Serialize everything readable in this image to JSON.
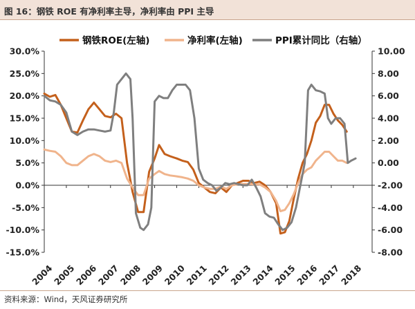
{
  "header": {
    "title": "图 16：钢铁 ROE 有净利率主导，净利率由 PPI 主导"
  },
  "footer": {
    "source": "资料来源：Wind，天风证券研究所"
  },
  "chart_data": {
    "type": "line",
    "x_ticks": [
      "2004",
      "2005",
      "2006",
      "2007",
      "2008",
      "2009",
      "2010",
      "2011",
      "2012",
      "2013",
      "2014",
      "2015",
      "2016",
      "2017",
      "2018"
    ],
    "x_range": [
      2004,
      2018.85
    ],
    "y_left": {
      "min": -15,
      "max": 30,
      "step": 5,
      "labels": [
        "-15.0%",
        "-10.0%",
        "-5.0%",
        "0.0%",
        "5.0%",
        "10.0%",
        "15.0%",
        "20.0%",
        "25.0%",
        "30.0%"
      ]
    },
    "y_right": {
      "min": -8,
      "max": 10,
      "step": 2,
      "labels": [
        "-8.00",
        "-6.00",
        "-4.00",
        "-2.00",
        "0.00",
        "2.00",
        "4.00",
        "6.00",
        "8.00",
        "10.00"
      ]
    },
    "grid": false,
    "legend_position": "top",
    "series": [
      {
        "name": "钢铁ROE(左轴)",
        "axis": "left",
        "color": "#c4601c",
        "points": [
          [
            2004.0,
            20.5
          ],
          [
            2004.25,
            19.8
          ],
          [
            2004.5,
            20.2
          ],
          [
            2004.75,
            18.0
          ],
          [
            2005.0,
            15.0
          ],
          [
            2005.25,
            12.0
          ],
          [
            2005.5,
            11.8
          ],
          [
            2005.75,
            14.5
          ],
          [
            2006.0,
            17.0
          ],
          [
            2006.25,
            18.5
          ],
          [
            2006.5,
            17.0
          ],
          [
            2006.75,
            15.5
          ],
          [
            2007.0,
            15.2
          ],
          [
            2007.25,
            16.0
          ],
          [
            2007.5,
            15.0
          ],
          [
            2007.75,
            5.0
          ],
          [
            2008.0,
            -1.5
          ],
          [
            2008.25,
            -6.0
          ],
          [
            2008.5,
            -6.0
          ],
          [
            2008.75,
            3.0
          ],
          [
            2009.0,
            6.0
          ],
          [
            2009.2,
            9.0
          ],
          [
            2009.45,
            7.0
          ],
          [
            2009.7,
            6.5
          ],
          [
            2010.0,
            6.0
          ],
          [
            2010.25,
            5.5
          ],
          [
            2010.5,
            5.2
          ],
          [
            2010.75,
            3.5
          ],
          [
            2011.0,
            0.5
          ],
          [
            2011.25,
            -0.5
          ],
          [
            2011.5,
            -1.5
          ],
          [
            2011.75,
            -1.8
          ],
          [
            2012.0,
            -0.5
          ],
          [
            2012.25,
            -1.5
          ],
          [
            2012.5,
            0.0
          ],
          [
            2012.75,
            0.5
          ],
          [
            2013.0,
            1.0
          ],
          [
            2013.25,
            1.0
          ],
          [
            2013.5,
            0.5
          ],
          [
            2013.75,
            0.8
          ],
          [
            2014.0,
            0.0
          ],
          [
            2014.25,
            -1.5
          ],
          [
            2014.5,
            -4.0
          ],
          [
            2014.7,
            -10.8
          ],
          [
            2014.9,
            -10.5
          ],
          [
            2015.1,
            -8.0
          ],
          [
            2015.3,
            -3.0
          ],
          [
            2015.5,
            1.5
          ],
          [
            2015.7,
            5.0
          ],
          [
            2015.9,
            7.0
          ],
          [
            2016.1,
            10.0
          ],
          [
            2016.3,
            14.0
          ],
          [
            2016.5,
            15.5
          ],
          [
            2016.7,
            18.0
          ],
          [
            2016.9,
            18.0
          ],
          [
            2017.1,
            16.0
          ],
          [
            2017.3,
            14.5
          ],
          [
            2017.5,
            13.5
          ],
          [
            2017.7,
            12.0
          ]
        ]
      },
      {
        "name": "净利率(左轴)",
        "axis": "left",
        "color": "#f0b48c",
        "points": [
          [
            2004.0,
            8.0
          ],
          [
            2004.25,
            7.7
          ],
          [
            2004.5,
            7.5
          ],
          [
            2004.75,
            6.5
          ],
          [
            2005.0,
            5.0
          ],
          [
            2005.25,
            4.5
          ],
          [
            2005.5,
            4.5
          ],
          [
            2005.75,
            5.5
          ],
          [
            2006.0,
            6.5
          ],
          [
            2006.25,
            7.0
          ],
          [
            2006.5,
            6.5
          ],
          [
            2006.75,
            5.5
          ],
          [
            2007.0,
            5.2
          ],
          [
            2007.25,
            5.5
          ],
          [
            2007.5,
            5.0
          ],
          [
            2007.75,
            1.5
          ],
          [
            2008.0,
            -0.5
          ],
          [
            2008.25,
            -2.2
          ],
          [
            2008.5,
            -2.2
          ],
          [
            2008.75,
            1.5
          ],
          [
            2009.0,
            2.5
          ],
          [
            2009.2,
            3.2
          ],
          [
            2009.45,
            2.5
          ],
          [
            2009.7,
            2.2
          ],
          [
            2010.0,
            2.0
          ],
          [
            2010.25,
            1.8
          ],
          [
            2010.5,
            1.5
          ],
          [
            2010.75,
            1.0
          ],
          [
            2011.0,
            0.0
          ],
          [
            2011.25,
            -0.5
          ],
          [
            2011.5,
            -0.8
          ],
          [
            2011.75,
            -0.8
          ],
          [
            2012.0,
            -0.3
          ],
          [
            2012.25,
            -0.8
          ],
          [
            2012.5,
            0.0
          ],
          [
            2012.75,
            0.2
          ],
          [
            2013.0,
            0.3
          ],
          [
            2013.25,
            0.3
          ],
          [
            2013.5,
            0.2
          ],
          [
            2013.75,
            0.2
          ],
          [
            2014.0,
            -0.5
          ],
          [
            2014.25,
            -1.5
          ],
          [
            2014.5,
            -3.5
          ],
          [
            2014.7,
            -5.8
          ],
          [
            2014.9,
            -5.5
          ],
          [
            2015.1,
            -4.0
          ],
          [
            2015.3,
            -2.0
          ],
          [
            2015.5,
            0.5
          ],
          [
            2015.7,
            2.5
          ],
          [
            2015.9,
            3.5
          ],
          [
            2016.1,
            4.0
          ],
          [
            2016.3,
            5.5
          ],
          [
            2016.5,
            6.5
          ],
          [
            2016.7,
            7.5
          ],
          [
            2016.9,
            7.5
          ],
          [
            2017.1,
            6.5
          ],
          [
            2017.3,
            5.5
          ],
          [
            2017.5,
            5.5
          ],
          [
            2017.7,
            5.0
          ]
        ]
      },
      {
        "name": "PPI累计同比（右轴）",
        "axis": "right",
        "color": "#7f7f7f",
        "points": [
          [
            2004.0,
            6.0
          ],
          [
            2004.25,
            5.6
          ],
          [
            2004.5,
            5.5
          ],
          [
            2004.75,
            5.2
          ],
          [
            2005.0,
            4.5
          ],
          [
            2005.25,
            2.8
          ],
          [
            2005.5,
            2.5
          ],
          [
            2005.75,
            2.8
          ],
          [
            2006.0,
            3.0
          ],
          [
            2006.25,
            3.0
          ],
          [
            2006.5,
            2.9
          ],
          [
            2006.75,
            2.8
          ],
          [
            2007.0,
            2.9
          ],
          [
            2007.15,
            4.5
          ],
          [
            2007.3,
            7.0
          ],
          [
            2007.5,
            7.5
          ],
          [
            2007.7,
            8.0
          ],
          [
            2007.9,
            7.5
          ],
          [
            2008.0,
            4.0
          ],
          [
            2008.15,
            -4.5
          ],
          [
            2008.35,
            -5.8
          ],
          [
            2008.5,
            -6.0
          ],
          [
            2008.7,
            -5.5
          ],
          [
            2008.85,
            -4.0
          ],
          [
            2009.0,
            5.5
          ],
          [
            2009.2,
            6.0
          ],
          [
            2009.4,
            5.8
          ],
          [
            2009.6,
            5.8
          ],
          [
            2009.8,
            6.5
          ],
          [
            2010.0,
            7.0
          ],
          [
            2010.2,
            7.0
          ],
          [
            2010.4,
            7.0
          ],
          [
            2010.6,
            6.5
          ],
          [
            2010.8,
            4.0
          ],
          [
            2011.0,
            -0.5
          ],
          [
            2011.2,
            -1.5
          ],
          [
            2011.4,
            -1.8
          ],
          [
            2011.6,
            -2.0
          ],
          [
            2011.8,
            -2.5
          ],
          [
            2012.0,
            -2.2
          ],
          [
            2012.2,
            -1.8
          ],
          [
            2012.4,
            -1.9
          ],
          [
            2012.6,
            -1.8
          ],
          [
            2012.8,
            -1.9
          ],
          [
            2013.0,
            -2.0
          ],
          [
            2013.2,
            -2.0
          ],
          [
            2013.4,
            -1.5
          ],
          [
            2013.6,
            -2.2
          ],
          [
            2013.8,
            -3.0
          ],
          [
            2014.0,
            -4.5
          ],
          [
            2014.2,
            -4.8
          ],
          [
            2014.4,
            -4.9
          ],
          [
            2014.6,
            -5.5
          ],
          [
            2014.8,
            -6.0
          ],
          [
            2015.0,
            -5.8
          ],
          [
            2015.2,
            -5.3
          ],
          [
            2015.4,
            -4.0
          ],
          [
            2015.6,
            -2.0
          ],
          [
            2015.8,
            0.0
          ],
          [
            2015.95,
            6.5
          ],
          [
            2016.1,
            7.0
          ],
          [
            2016.3,
            6.5
          ],
          [
            2016.5,
            6.4
          ],
          [
            2016.7,
            6.2
          ],
          [
            2016.85,
            4.0
          ],
          [
            2017.0,
            3.5
          ],
          [
            2017.2,
            4.0
          ],
          [
            2017.4,
            4.0
          ],
          [
            2017.6,
            3.5
          ],
          [
            2017.75,
            0.0
          ],
          [
            2017.9,
            0.2
          ],
          [
            2018.1,
            0.4
          ]
        ]
      }
    ]
  }
}
